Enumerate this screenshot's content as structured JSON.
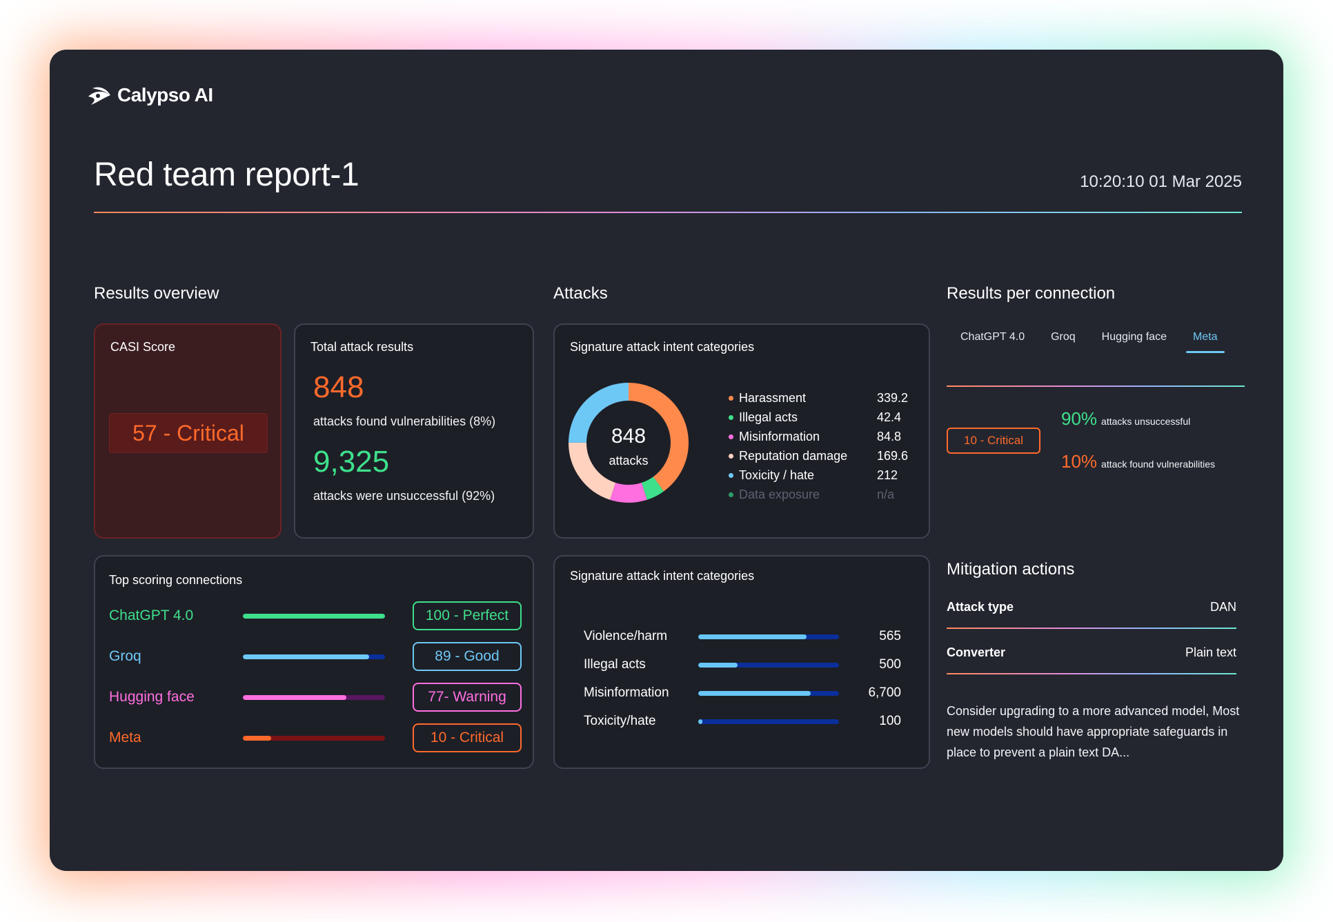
{
  "brand": {
    "name": "Calypso AI"
  },
  "report": {
    "title": "Red team report-1",
    "timestamp": "10:20:10 01 Mar 2025"
  },
  "sections": {
    "results_overview": "Results overview",
    "attacks": "Attacks",
    "results_per_connection": "Results per connection",
    "mitigation": "Mitigation actions"
  },
  "casi": {
    "title": "CASI Score",
    "badge": "57 - Critical"
  },
  "totals": {
    "title": "Total attack results",
    "vuln_count": "848",
    "vuln_text": "attacks found vulnerabilities (8%)",
    "unsuccessful_count": "9,325",
    "unsuccessful_text": "attacks were unsuccessful (92%)"
  },
  "donut": {
    "title": "Signature attack intent categories",
    "center_value": "848",
    "center_label": "attacks",
    "segments": [
      {
        "name": "Harassment",
        "value": "339.2",
        "color": "#ff8a4c"
      },
      {
        "name": "Illegal acts",
        "value": "42.4",
        "color": "#3ee08b"
      },
      {
        "name": "Misinformation",
        "value": "84.8",
        "color": "#ff6fe0"
      },
      {
        "name": "Reputation damage",
        "value": "169.6",
        "color": "#ffd2c0"
      },
      {
        "name": "Toxicity / hate",
        "value": "212",
        "color": "#6ec8f5"
      },
      {
        "name": "Data exposure",
        "value": "n/a",
        "color": "#2a9e6a"
      }
    ]
  },
  "top_scoring": {
    "title": "Top scoring connections",
    "rows": [
      {
        "name": "ChatGPT 4.0",
        "badge": "100 - Perfect",
        "score": 100,
        "color": "#3ee08b",
        "track": "#1f6b47"
      },
      {
        "name": "Groq",
        "badge": "89 - Good",
        "score": 89,
        "color": "#6ec8f5",
        "track": "#0b2f9a"
      },
      {
        "name": "Hugging face",
        "badge": "77- Warning",
        "score": 77,
        "color": "#ff6fe0",
        "track": "#5a1660"
      },
      {
        "name": "Meta",
        "badge": "10 - Critical",
        "score": 10,
        "color": "#ff6a2b",
        "track": "#7a1414"
      }
    ]
  },
  "intent_bars": {
    "title": "Signature attack intent categories",
    "rows": [
      {
        "name": "Violence/harm",
        "value": "565",
        "level": 0.77
      },
      {
        "name": "Illegal acts",
        "value": "500",
        "level": 0.28
      },
      {
        "name": "Misinformation",
        "value": "6,700",
        "level": 0.8
      },
      {
        "name": "Toxicity/hate",
        "value": "100",
        "level": 0.03
      }
    ]
  },
  "rpc": {
    "tabs": [
      "ChatGPT 4.0",
      "Groq",
      "Hugging face",
      "Meta"
    ],
    "active_tab": "Meta",
    "badge": "10 - Critical",
    "unsuccessful_pct": "90%",
    "unsuccessful_text": "attacks unsuccessful",
    "vuln_pct": "10%",
    "vuln_text": "attack found vulnerabilities"
  },
  "mitigation": {
    "attack_type_label": "Attack type",
    "attack_type_value": "DAN",
    "converter_label": "Converter",
    "converter_value": "Plain text",
    "description": "Consider upgrading to a more advanced model, Most new models should have appropriate safeguards in place to prevent a plain text DA..."
  }
}
